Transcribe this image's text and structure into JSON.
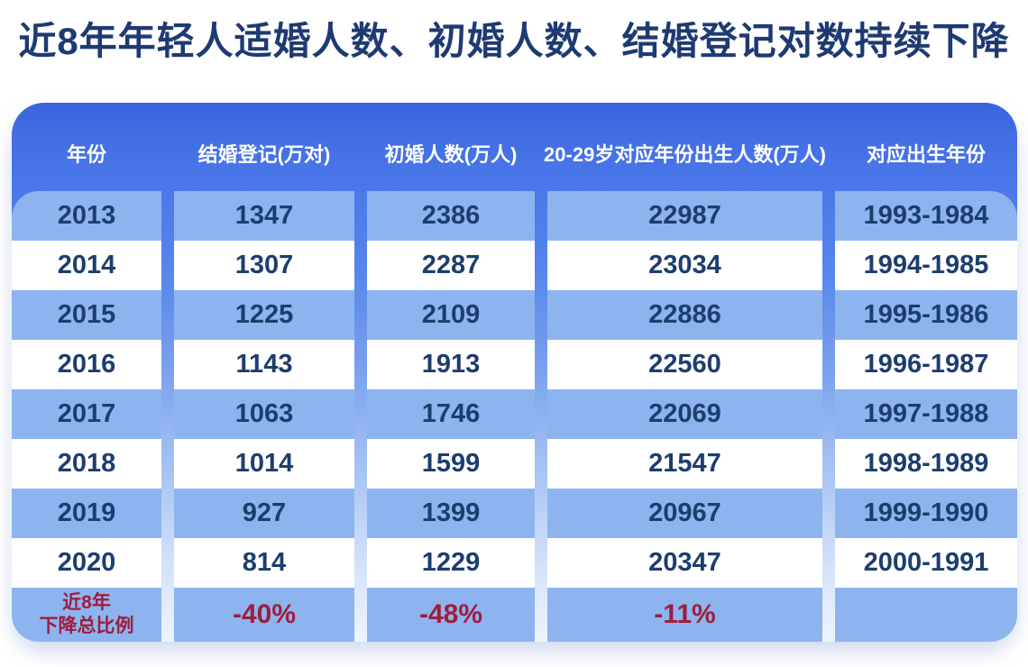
{
  "title": "近8年年轻人适婚人数、初婚人数、结婚登记对数持续下降",
  "colors": {
    "title_text": "#1e3a72",
    "header_background_top": "#3a63dc",
    "header_background_bottom": "#4c7ae9",
    "header_text": "#ffffff",
    "row_light_blue": "#8db4ef",
    "row_white": "#ffffff",
    "data_text_navy": "#1d3d6e",
    "summary_text_red": "#9e1d3d"
  },
  "chart_data": {
    "type": "table",
    "title": "近8年年轻人适婚人数、初婚人数、结婚登记对数持续下降",
    "columns": [
      "年份",
      "结婚登记(万对)",
      "初婚人数(万人)",
      "20-29岁对应年份出生人数(万人)",
      "对应出生年份"
    ],
    "rows": [
      [
        "2013",
        "1347",
        "2386",
        "22987",
        "1993-1984"
      ],
      [
        "2014",
        "1307",
        "2287",
        "23034",
        "1994-1985"
      ],
      [
        "2015",
        "1225",
        "2109",
        "22886",
        "1995-1986"
      ],
      [
        "2016",
        "1143",
        "1913",
        "22560",
        "1996-1987"
      ],
      [
        "2017",
        "1063",
        "1746",
        "22069",
        "1997-1988"
      ],
      [
        "2018",
        "1014",
        "1599",
        "21547",
        "1998-1989"
      ],
      [
        "2019",
        "927",
        "1399",
        "20967",
        "1999-1990"
      ],
      [
        "2020",
        "814",
        "1229",
        "20347",
        "2000-1991"
      ]
    ],
    "summary_row": {
      "label_line1": "近8年",
      "label_line2": "下降总比例",
      "values": [
        "-40%",
        "-48%",
        "-11%",
        ""
      ]
    },
    "layout": {
      "striping": "alternating light-blue / white rows",
      "header_position": "top",
      "summary_row_text_color": "red"
    }
  }
}
